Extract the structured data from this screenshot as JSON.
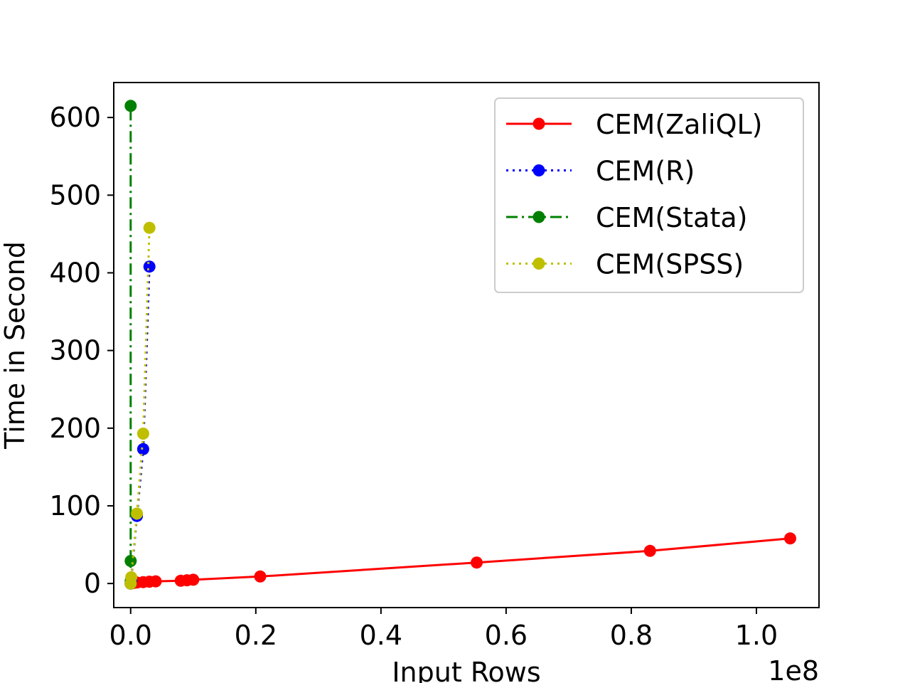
{
  "chart_data": {
    "type": "line",
    "title": "",
    "xlabel": "Input Rows",
    "ylabel": "Time in Second",
    "x_offset_label": "1e8",
    "xlim": [
      -2700000,
      110000000
    ],
    "ylim": [
      -31,
      645
    ],
    "x_ticks": [
      0,
      20000000,
      40000000,
      60000000,
      80000000,
      100000000
    ],
    "x_tick_labels": [
      "0.0",
      "0.2",
      "0.4",
      "0.6",
      "0.8",
      "1.0"
    ],
    "y_ticks": [
      0,
      100,
      200,
      300,
      400,
      500,
      600
    ],
    "y_tick_labels": [
      "0",
      "100",
      "200",
      "300",
      "400",
      "500",
      "600"
    ],
    "grid": false,
    "legend_position": "top-right",
    "series": [
      {
        "name": "CEM(ZaliQL)",
        "color": "#ff0000",
        "line_style": "solid",
        "x": [
          0,
          100000,
          200000,
          500000,
          1000000,
          2000000,
          3000000,
          4000000,
          8000000,
          9000000,
          10000000,
          20700000,
          55300000,
          83000000,
          105400000
        ],
        "y": [
          0,
          0.3,
          0.5,
          0.8,
          1.2,
          1.8,
          2.3,
          2.8,
          3.5,
          4.2,
          4.8,
          9,
          27,
          42,
          58
        ]
      },
      {
        "name": "CEM(R)",
        "color": "#0000ff",
        "line_style": "dotted",
        "x": [
          0,
          100000,
          1000000,
          2000000,
          3000000
        ],
        "y": [
          0,
          5,
          87,
          173,
          408
        ]
      },
      {
        "name": "CEM(Stata)",
        "color": "#008000",
        "line_style": "dashdot",
        "x": [
          0,
          0,
          0,
          0
        ],
        "y": [
          0,
          3,
          29,
          615
        ]
      },
      {
        "name": "CEM(SPSS)",
        "color": "#bfbf00",
        "line_style": "dotted",
        "x": [
          0,
          100000,
          1000000,
          2000000,
          3000000
        ],
        "y": [
          0,
          8,
          90,
          193,
          458
        ]
      }
    ]
  }
}
